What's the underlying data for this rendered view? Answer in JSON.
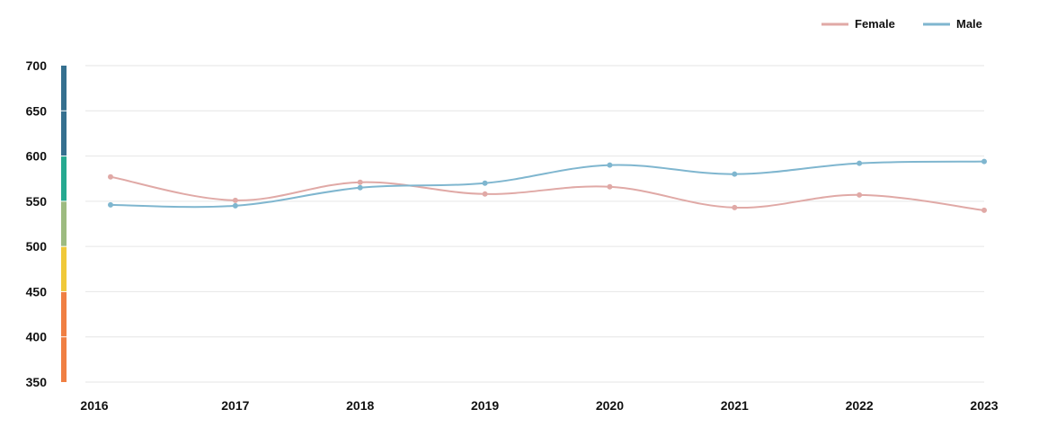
{
  "chart_data": {
    "type": "line",
    "title": "",
    "xlabel": "",
    "ylabel": "",
    "categories": [
      "2016",
      "2017",
      "2018",
      "2019",
      "2020",
      "2021",
      "2022",
      "2023"
    ],
    "ylim": [
      350,
      700
    ],
    "yticks": [
      "350",
      "400",
      "450",
      "500",
      "550",
      "600",
      "650",
      "700"
    ],
    "grid": true,
    "legend_position": "top-right",
    "series": [
      {
        "name": "Female",
        "color": "#e0a9a6",
        "values": [
          577,
          551,
          571,
          558,
          566,
          543,
          557,
          540
        ]
      },
      {
        "name": "Male",
        "color": "#7fb6cf",
        "values": [
          546,
          545,
          565,
          570,
          590,
          580,
          592,
          594
        ]
      }
    ],
    "scale_bands": [
      {
        "from": 350,
        "to": 450,
        "color": "#f07f43"
      },
      {
        "from": 450,
        "to": 500,
        "color": "#f0c93a"
      },
      {
        "from": 500,
        "to": 550,
        "color": "#9dbb80"
      },
      {
        "from": 550,
        "to": 600,
        "color": "#26a990"
      },
      {
        "from": 600,
        "to": 700,
        "color": "#35708f"
      }
    ]
  }
}
